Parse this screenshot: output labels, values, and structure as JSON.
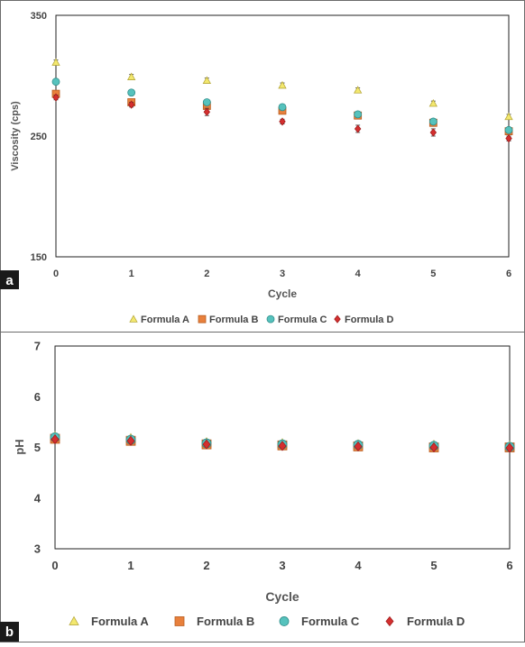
{
  "panels": [
    {
      "letter": "a"
    },
    {
      "letter": "b"
    }
  ],
  "chart_data": [
    {
      "type": "scatter",
      "xlabel": "Cycle",
      "ylabel": "Viscosity (cps)",
      "x": [
        0,
        1,
        2,
        3,
        4,
        5,
        6
      ],
      "xlim": [
        0,
        6
      ],
      "ylim": [
        150,
        350
      ],
      "yticks": [
        150,
        250,
        350
      ],
      "grid": false,
      "legend_position": "bottom",
      "series": [
        {
          "name": "Formula A",
          "marker": "triangle",
          "color": "#f3e86f",
          "edge": "#b7a93a",
          "values": [
            311,
            299,
            296,
            292,
            288,
            277,
            266
          ],
          "err": [
            2,
            2,
            2,
            2,
            2,
            2,
            2
          ]
        },
        {
          "name": "Formula B",
          "marker": "square",
          "color": "#e8803c",
          "edge": "#b85d20",
          "values": [
            285,
            278,
            275,
            271,
            267,
            261,
            254
          ],
          "err": [
            2,
            2,
            2,
            2,
            2,
            2,
            2
          ]
        },
        {
          "name": "Formula C",
          "marker": "circle",
          "color": "#56c2bd",
          "edge": "#2f8e8a",
          "values": [
            295,
            286,
            278,
            274,
            268,
            262,
            255
          ],
          "err": [
            2,
            2,
            2,
            2,
            2,
            2,
            2
          ]
        },
        {
          "name": "Formula D",
          "marker": "diamond",
          "color": "#d42f2f",
          "edge": "#a01d1d",
          "values": [
            282,
            276,
            270,
            262,
            256,
            253,
            248
          ],
          "err": [
            2,
            2,
            3,
            2,
            3,
            3,
            2
          ]
        }
      ]
    },
    {
      "type": "scatter",
      "xlabel": "Cycle",
      "ylabel": "pH",
      "x": [
        0,
        1,
        2,
        3,
        4,
        5,
        6
      ],
      "xlim": [
        0,
        6
      ],
      "ylim": [
        3,
        7
      ],
      "yticks": [
        3,
        4,
        5,
        6,
        7
      ],
      "grid": false,
      "legend_position": "bottom",
      "series": [
        {
          "name": "Formula A",
          "marker": "triangle",
          "color": "#f3e86f",
          "edge": "#b7a93a",
          "values": [
            5.22,
            5.18,
            5.1,
            5.08,
            5.06,
            5.05,
            5.03
          ]
        },
        {
          "name": "Formula B",
          "marker": "square",
          "color": "#e8803c",
          "edge": "#b85d20",
          "values": [
            5.17,
            5.13,
            5.06,
            5.04,
            5.02,
            5.0,
            5.0
          ]
        },
        {
          "name": "Formula C",
          "marker": "circle",
          "color": "#56c2bd",
          "edge": "#2f8e8a",
          "values": [
            5.2,
            5.15,
            5.08,
            5.06,
            5.05,
            5.03,
            5.01
          ]
        },
        {
          "name": "Formula D",
          "marker": "diamond",
          "color": "#d42f2f",
          "edge": "#a01d1d",
          "values": [
            5.16,
            5.13,
            5.06,
            5.03,
            5.02,
            5.0,
            4.99
          ]
        }
      ]
    }
  ]
}
